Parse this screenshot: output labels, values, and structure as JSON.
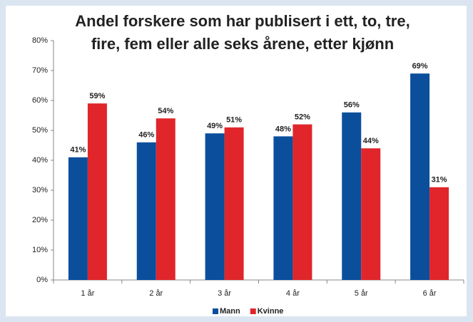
{
  "chart_data": {
    "type": "bar",
    "title": [
      "Andel forskere som har publisert i ett, to, tre,",
      "fire, fem eller alle seks årene, etter kjønn"
    ],
    "categories": [
      "1 år",
      "2 år",
      "3 år",
      "4 år",
      "5 år",
      "6 år"
    ],
    "series": [
      {
        "name": "Mann",
        "color": "#0b4f9c",
        "values": [
          41,
          46,
          49,
          48,
          56,
          69
        ],
        "value_labels": [
          "41%",
          "46%",
          "49%",
          "48%",
          "56%",
          "69%"
        ]
      },
      {
        "name": "Kvinne",
        "color": "#e0262b",
        "values": [
          59,
          54,
          51,
          52,
          44,
          31
        ],
        "value_labels": [
          "59%",
          "54%",
          "51%",
          "52%",
          "44%",
          "31%"
        ]
      }
    ],
    "ylim": [
      0,
      80
    ],
    "yticks": [
      {
        "value": 0,
        "label": "0%"
      },
      {
        "value": 10,
        "label": "10%"
      },
      {
        "value": 20,
        "label": "20%"
      },
      {
        "value": 30,
        "label": "30%"
      },
      {
        "value": 40,
        "label": "40%"
      },
      {
        "value": 50,
        "label": "50%"
      },
      {
        "value": 60,
        "label": "60%"
      },
      {
        "value": 70,
        "label": "70%"
      },
      {
        "value": 80,
        "label": "80%"
      }
    ],
    "grid": false,
    "legend": "bottom"
  }
}
